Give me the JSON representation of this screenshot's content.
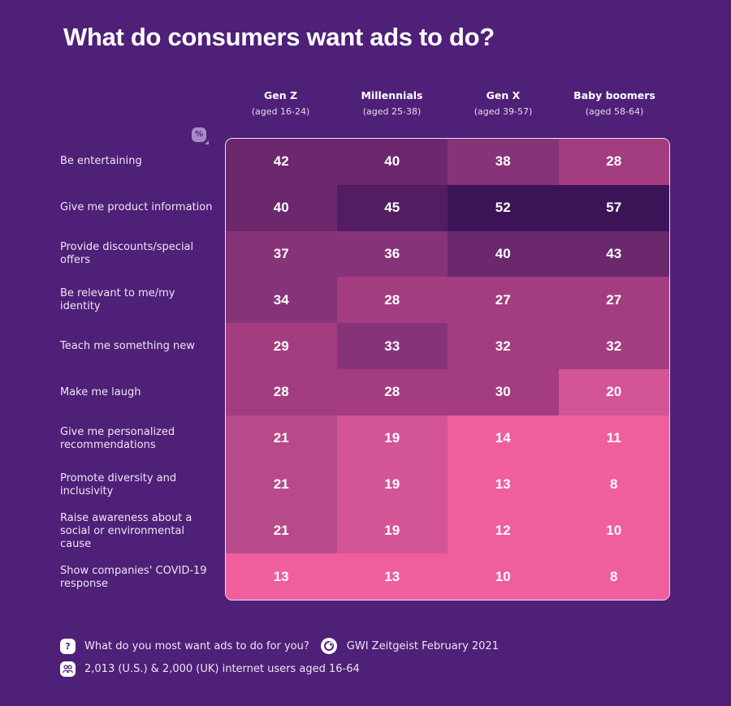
{
  "chart_data": {
    "type": "heatmap",
    "title": "What do consumers want ads to do?",
    "unit_label": "%",
    "columns": [
      {
        "name": "Gen Z",
        "age": "(aged 16-24)"
      },
      {
        "name": "Millennials",
        "age": "(aged 25-38)"
      },
      {
        "name": "Gen X",
        "age": "(aged 39-57)"
      },
      {
        "name": "Baby boomers",
        "age": "(aged 58-64)"
      }
    ],
    "rows": [
      {
        "label": "Be entertaining",
        "values": [
          42,
          40,
          38,
          28
        ]
      },
      {
        "label": "Give me product information",
        "values": [
          40,
          45,
          52,
          57
        ]
      },
      {
        "label": "Provide discounts/special offers",
        "values": [
          37,
          36,
          40,
          43
        ]
      },
      {
        "label": "Be relevant to me/my identity",
        "values": [
          34,
          28,
          27,
          27
        ]
      },
      {
        "label": "Teach me something new",
        "values": [
          29,
          33,
          32,
          32
        ]
      },
      {
        "label": "Make me laugh",
        "values": [
          28,
          28,
          30,
          20
        ]
      },
      {
        "label": "Give me personalized recommendations",
        "values": [
          21,
          19,
          14,
          11
        ]
      },
      {
        "label": "Promote diversity and inclusivity",
        "values": [
          21,
          19,
          13,
          8
        ]
      },
      {
        "label": "Raise awareness about a social or environmental cause",
        "values": [
          21,
          19,
          12,
          10
        ]
      },
      {
        "label": "Show companies' COVID-19 response",
        "values": [
          13,
          13,
          10,
          8
        ]
      }
    ],
    "color_scale": [
      {
        "min": 50,
        "color": "#3c1457"
      },
      {
        "min": 45,
        "color": "#531d62"
      },
      {
        "min": 40,
        "color": "#6b286c"
      },
      {
        "min": 33,
        "color": "#87337a"
      },
      {
        "min": 27,
        "color": "#a33d80"
      },
      {
        "min": 21,
        "color": "#b84a8b"
      },
      {
        "min": 15,
        "color": "#d35595"
      },
      {
        "min": 0,
        "color": "#ef5f9e"
      }
    ]
  },
  "footer": {
    "question_icon": "question-icon",
    "question": "What do you most want ads to do for you?",
    "source_icon": "gwi-logo-icon",
    "source": "GWI Zeitgeist February 2021",
    "sample_icon": "users-icon",
    "sample": "2,013 (U.S.) & 2,000 (UK) internet users aged 16-64"
  }
}
